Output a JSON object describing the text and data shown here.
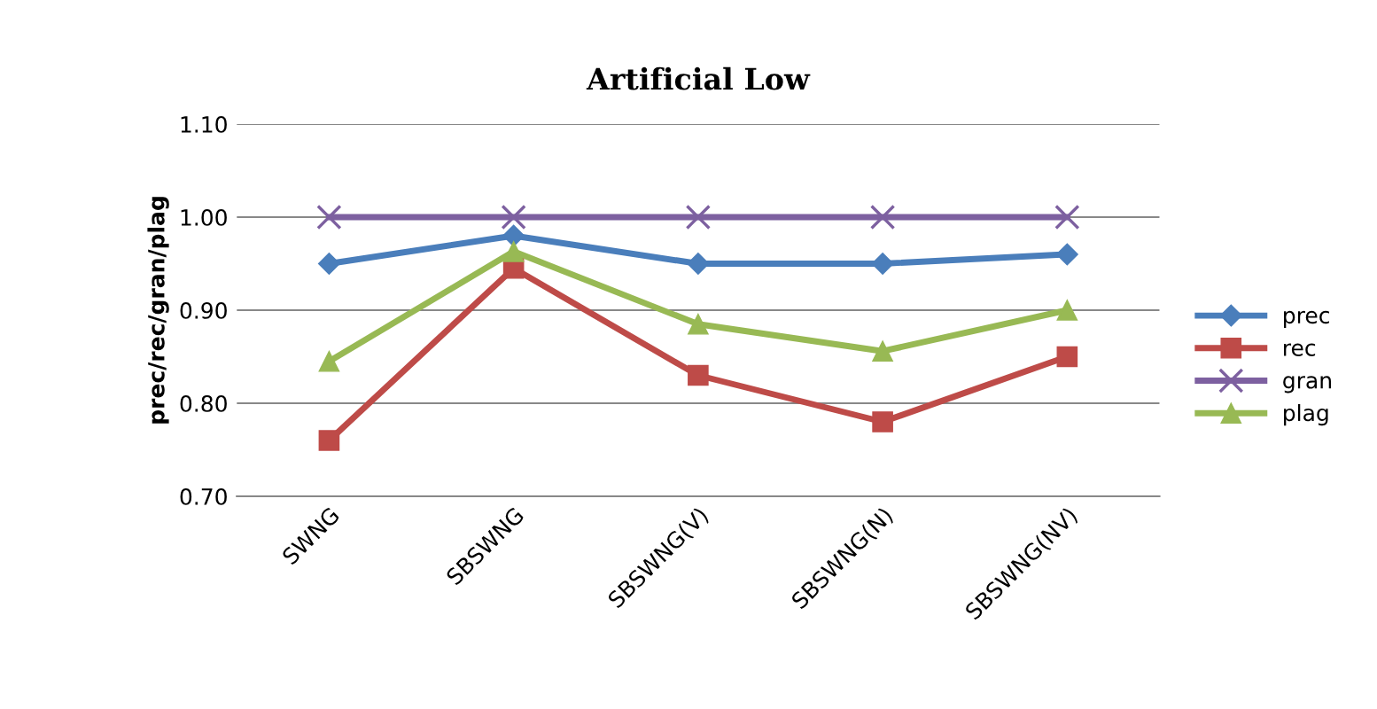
{
  "chart_data": {
    "type": "line",
    "title": "Artificial Low",
    "ylabel": "prec/rec/gran/plag",
    "categories": [
      "SWNG",
      "SBSWNG",
      "SBSWNG(V)",
      "SBSWNG(N)",
      "SBSWNG(NV)"
    ],
    "series": [
      {
        "name": "prec",
        "color": "#4a7ebb",
        "marker": "diamond",
        "values": [
          0.95,
          0.98,
          0.95,
          0.95,
          0.96
        ]
      },
      {
        "name": "rec",
        "color": "#be4b48",
        "marker": "square",
        "values": [
          0.76,
          0.945,
          0.83,
          0.78,
          0.85
        ]
      },
      {
        "name": "gran",
        "color": "#7d60a0",
        "marker": "cross",
        "values": [
          1.0,
          1.0,
          1.0,
          1.0,
          1.0
        ]
      },
      {
        "name": "plag",
        "color": "#98b954",
        "marker": "triangle",
        "values": [
          0.845,
          0.963,
          0.885,
          0.856,
          0.9
        ]
      }
    ],
    "ylim": [
      0.7,
      1.1
    ],
    "yticks": [
      {
        "value": 0.7,
        "label": "0.70"
      },
      {
        "value": 0.8,
        "label": "0.80"
      },
      {
        "value": 0.9,
        "label": "0.90"
      },
      {
        "value": 1.0,
        "label": "1.00"
      },
      {
        "value": 1.1,
        "label": "1.10"
      }
    ],
    "grid": "y",
    "legend": "right"
  }
}
